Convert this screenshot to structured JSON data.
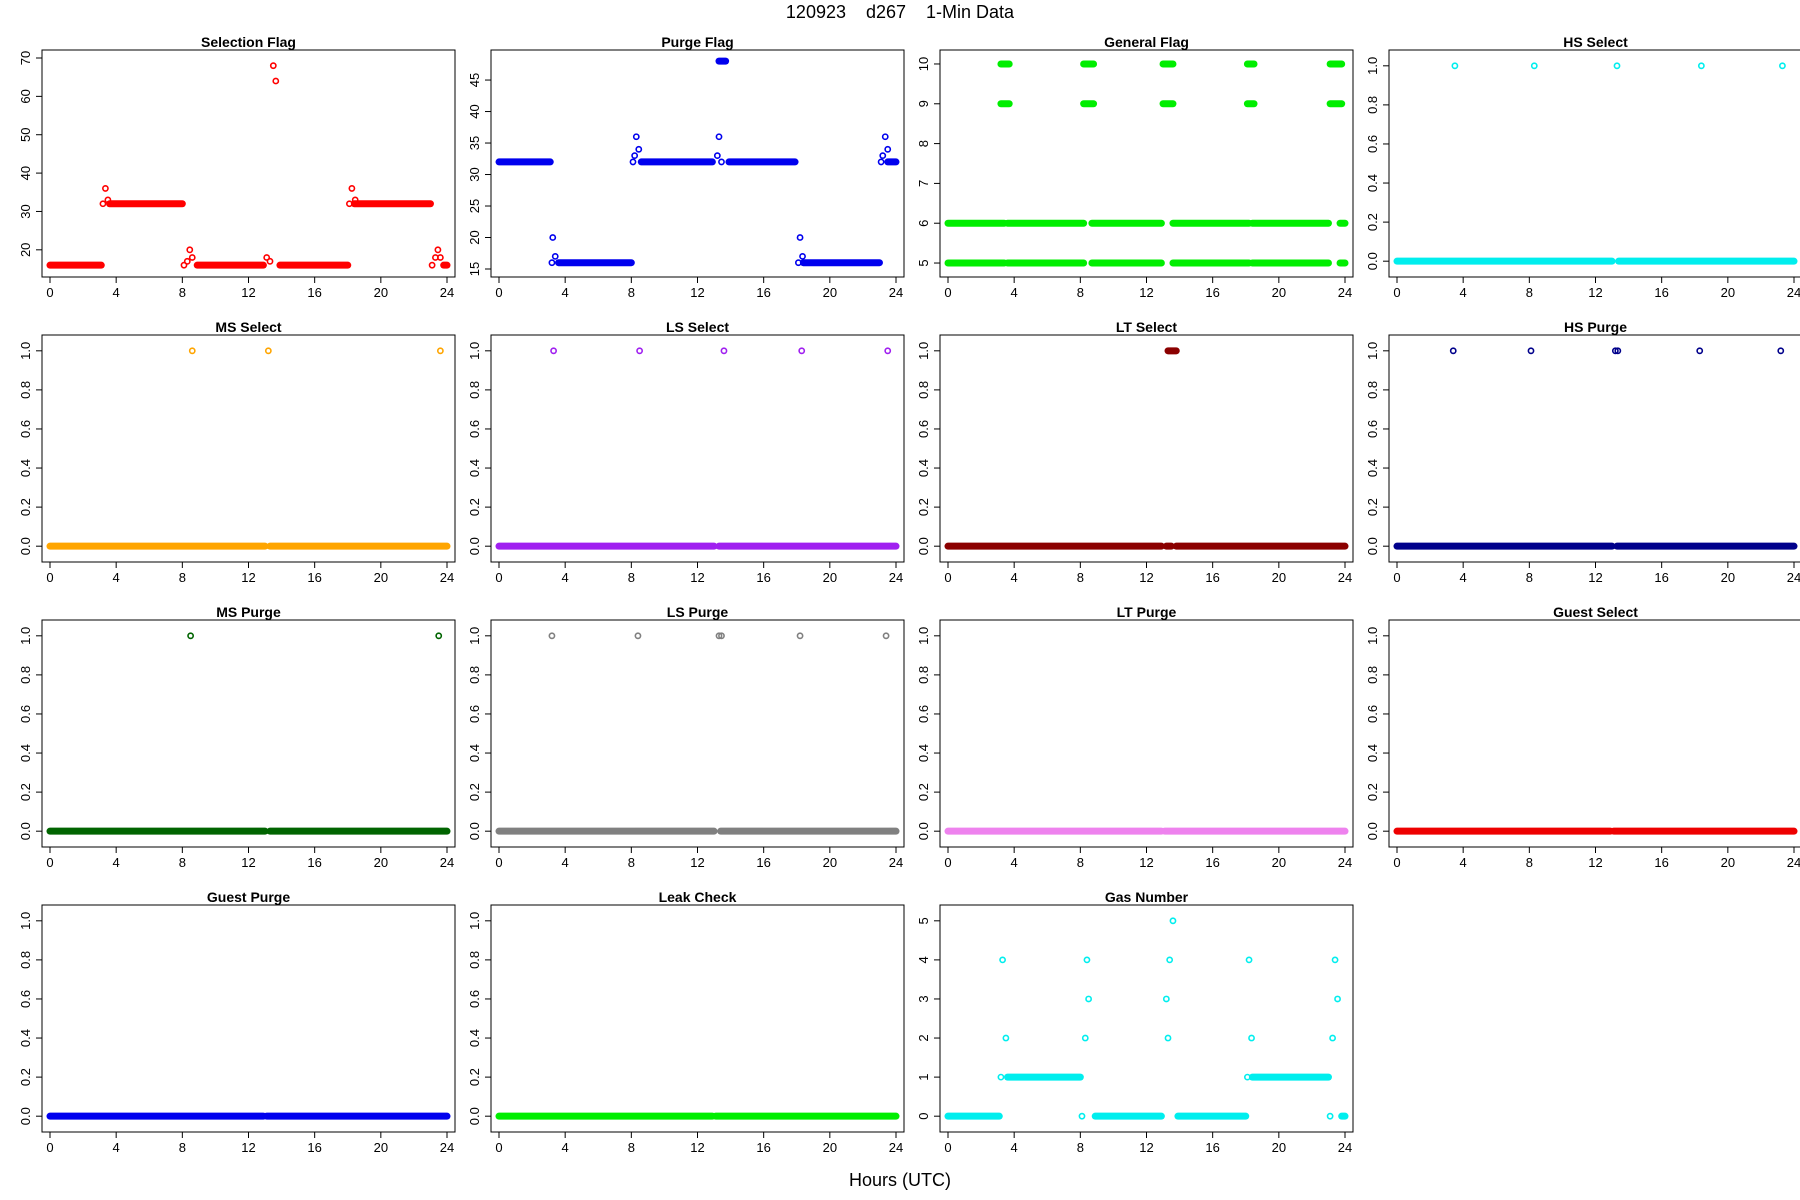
{
  "page": {
    "title": "120923    d267    1-Min Data",
    "xlabel": "Hours (UTC)"
  },
  "chart_data": [
    {
      "type": "scatter",
      "title": "Selection Flag",
      "color": "#ff0000",
      "xlabel": "Hours (UTC)",
      "xlim": [
        0,
        24
      ],
      "xticks": [
        0,
        4,
        8,
        12,
        16,
        20,
        24
      ],
      "ylim": [
        15,
        70
      ],
      "yticks": [
        20,
        30,
        40,
        50,
        60,
        70
      ],
      "segments": [
        {
          "x0": 0,
          "x1": 3.1,
          "y": 16
        },
        {
          "x0": 3.6,
          "x1": 8.0,
          "y": 32
        },
        {
          "x0": 8.9,
          "x1": 12.9,
          "y": 16
        },
        {
          "x0": 13.9,
          "x1": 18.0,
          "y": 16
        },
        {
          "x0": 18.4,
          "x1": 23.0,
          "y": 32
        },
        {
          "x0": 23.8,
          "x1": 24,
          "y": 16
        }
      ],
      "points": [
        [
          3.2,
          32
        ],
        [
          3.35,
          36
        ],
        [
          3.5,
          33
        ],
        [
          8.1,
          16
        ],
        [
          8.3,
          17
        ],
        [
          8.45,
          20
        ],
        [
          8.6,
          18
        ],
        [
          13.1,
          18
        ],
        [
          13.3,
          17
        ],
        [
          13.5,
          68
        ],
        [
          13.65,
          64
        ],
        [
          18.1,
          32
        ],
        [
          18.25,
          36
        ],
        [
          18.45,
          33
        ],
        [
          23.1,
          16
        ],
        [
          23.3,
          18
        ],
        [
          23.45,
          20
        ],
        [
          23.6,
          18
        ]
      ]
    },
    {
      "type": "scatter",
      "title": "Purge Flag",
      "color": "#0000ee",
      "xlabel": "Hours (UTC)",
      "xlim": [
        0,
        24
      ],
      "xticks": [
        0,
        4,
        8,
        12,
        16,
        20,
        24
      ],
      "ylim": [
        15,
        48.5
      ],
      "yticks": [
        15,
        20,
        25,
        30,
        35,
        40,
        45
      ],
      "segments": [
        {
          "x0": 0,
          "x1": 3.1,
          "y": 32
        },
        {
          "x0": 3.6,
          "x1": 8.0,
          "y": 16
        },
        {
          "x0": 8.6,
          "x1": 12.9,
          "y": 32
        },
        {
          "x0": 13.3,
          "x1": 13.7,
          "y": 48
        },
        {
          "x0": 13.9,
          "x1": 17.9,
          "y": 32
        },
        {
          "x0": 18.4,
          "x1": 23.0,
          "y": 16
        },
        {
          "x0": 23.5,
          "x1": 24,
          "y": 32
        }
      ],
      "points": [
        [
          3.2,
          16
        ],
        [
          3.25,
          20
        ],
        [
          3.4,
          17
        ],
        [
          8.1,
          32
        ],
        [
          8.2,
          33
        ],
        [
          8.3,
          36
        ],
        [
          8.45,
          34
        ],
        [
          13.2,
          33
        ],
        [
          13.3,
          36
        ],
        [
          13.45,
          32
        ],
        [
          18.1,
          16
        ],
        [
          18.2,
          20
        ],
        [
          18.35,
          17
        ],
        [
          23.1,
          32
        ],
        [
          23.2,
          33
        ],
        [
          23.35,
          36
        ],
        [
          23.5,
          34
        ]
      ]
    },
    {
      "type": "scatter",
      "title": "General Flag",
      "color": "#00ee00",
      "xlabel": "Hours (UTC)",
      "xlim": [
        0,
        24
      ],
      "xticks": [
        0,
        4,
        8,
        12,
        16,
        20,
        24
      ],
      "ylim": [
        4.85,
        10.15
      ],
      "yticks": [
        5,
        6,
        7,
        8,
        9,
        10
      ],
      "segments": [
        {
          "x0": 0,
          "x1": 3.4,
          "y": 6
        },
        {
          "x0": 3.6,
          "x1": 8.2,
          "y": 6
        },
        {
          "x0": 8.7,
          "x1": 12.9,
          "y": 6
        },
        {
          "x0": 13.6,
          "x1": 18.2,
          "y": 6
        },
        {
          "x0": 18.4,
          "x1": 23.0,
          "y": 6
        },
        {
          "x0": 23.7,
          "x1": 24,
          "y": 6
        },
        {
          "x0": 0,
          "x1": 3.4,
          "y": 5
        },
        {
          "x0": 3.6,
          "x1": 8.2,
          "y": 5
        },
        {
          "x0": 8.7,
          "x1": 12.9,
          "y": 5
        },
        {
          "x0": 13.6,
          "x1": 18.2,
          "y": 5
        },
        {
          "x0": 18.4,
          "x1": 23.0,
          "y": 5
        },
        {
          "x0": 23.7,
          "x1": 24,
          "y": 5
        },
        {
          "x0": 3.2,
          "x1": 3.7,
          "y": 10
        },
        {
          "x0": 8.2,
          "x1": 8.8,
          "y": 10
        },
        {
          "x0": 13.0,
          "x1": 13.6,
          "y": 10
        },
        {
          "x0": 18.1,
          "x1": 18.5,
          "y": 10
        },
        {
          "x0": 23.1,
          "x1": 23.8,
          "y": 10
        },
        {
          "x0": 3.2,
          "x1": 3.7,
          "y": 9
        },
        {
          "x0": 8.2,
          "x1": 8.8,
          "y": 9
        },
        {
          "x0": 13.0,
          "x1": 13.6,
          "y": 9
        },
        {
          "x0": 18.1,
          "x1": 18.5,
          "y": 9
        },
        {
          "x0": 23.1,
          "x1": 23.8,
          "y": 9
        }
      ],
      "points": []
    },
    {
      "type": "scatter",
      "title": "HS Select",
      "color": "#00eeee",
      "xlabel": "Hours (UTC)",
      "xlim": [
        0,
        24
      ],
      "xticks": [
        0,
        4,
        8,
        12,
        16,
        20,
        24
      ],
      "ylim": [
        -0.04,
        1.04
      ],
      "yticks": [
        0.0,
        0.2,
        0.4,
        0.6,
        0.8,
        1.0
      ],
      "segments": [
        {
          "x0": 0,
          "x1": 13.0,
          "y": 0
        },
        {
          "x0": 13.4,
          "x1": 24,
          "y": 0
        }
      ],
      "points": [
        [
          3.5,
          1
        ],
        [
          8.3,
          1
        ],
        [
          13.3,
          1
        ],
        [
          18.4,
          1
        ],
        [
          23.3,
          1
        ]
      ]
    },
    {
      "type": "scatter",
      "title": "MS Select",
      "color": "#ffa500",
      "xlabel": "Hours (UTC)",
      "xlim": [
        0,
        24
      ],
      "xticks": [
        0,
        4,
        8,
        12,
        16,
        20,
        24
      ],
      "ylim": [
        -0.04,
        1.04
      ],
      "yticks": [
        0.0,
        0.2,
        0.4,
        0.6,
        0.8,
        1.0
      ],
      "segments": [
        {
          "x0": 0,
          "x1": 13.0,
          "y": 0
        },
        {
          "x0": 13.3,
          "x1": 24,
          "y": 0
        }
      ],
      "points": [
        [
          8.6,
          1
        ],
        [
          13.2,
          1
        ],
        [
          23.6,
          1
        ]
      ]
    },
    {
      "type": "scatter",
      "title": "LS Select",
      "color": "#a020f0",
      "xlabel": "Hours (UTC)",
      "xlim": [
        0,
        24
      ],
      "xticks": [
        0,
        4,
        8,
        12,
        16,
        20,
        24
      ],
      "ylim": [
        -0.04,
        1.04
      ],
      "yticks": [
        0.0,
        0.2,
        0.4,
        0.6,
        0.8,
        1.0
      ],
      "segments": [
        {
          "x0": 0,
          "x1": 13.0,
          "y": 0
        },
        {
          "x0": 13.3,
          "x1": 24,
          "y": 0
        }
      ],
      "points": [
        [
          3.3,
          1
        ],
        [
          8.5,
          1
        ],
        [
          13.6,
          1
        ],
        [
          18.3,
          1
        ],
        [
          23.5,
          1
        ]
      ]
    },
    {
      "type": "scatter",
      "title": "LT Select",
      "color": "#8b0000",
      "xlabel": "Hours (UTC)",
      "xlim": [
        0,
        24
      ],
      "xticks": [
        0,
        4,
        8,
        12,
        16,
        20,
        24
      ],
      "ylim": [
        -0.04,
        1.04
      ],
      "yticks": [
        0.0,
        0.2,
        0.4,
        0.6,
        0.8,
        1.0
      ],
      "segments": [
        {
          "x0": 0,
          "x1": 12.9,
          "y": 0
        },
        {
          "x0": 13.2,
          "x1": 13.5,
          "y": 0
        },
        {
          "x0": 13.8,
          "x1": 24,
          "y": 0
        },
        {
          "x0": 13.3,
          "x1": 13.8,
          "y": 1
        }
      ],
      "points": []
    },
    {
      "type": "scatter",
      "title": "HS Purge",
      "color": "#00008b",
      "xlabel": "Hours (UTC)",
      "xlim": [
        0,
        24
      ],
      "xticks": [
        0,
        4,
        8,
        12,
        16,
        20,
        24
      ],
      "ylim": [
        -0.04,
        1.04
      ],
      "yticks": [
        0.0,
        0.2,
        0.4,
        0.6,
        0.8,
        1.0
      ],
      "segments": [
        {
          "x0": 0,
          "x1": 13.0,
          "y": 0
        },
        {
          "x0": 13.3,
          "x1": 24,
          "y": 0
        }
      ],
      "points": [
        [
          3.4,
          1
        ],
        [
          8.1,
          1
        ],
        [
          13.2,
          1
        ],
        [
          13.35,
          1
        ],
        [
          18.3,
          1
        ],
        [
          23.2,
          1
        ]
      ]
    },
    {
      "type": "scatter",
      "title": "MS Purge",
      "color": "#006400",
      "xlabel": "Hours (UTC)",
      "xlim": [
        0,
        24
      ],
      "xticks": [
        0,
        4,
        8,
        12,
        16,
        20,
        24
      ],
      "ylim": [
        -0.04,
        1.04
      ],
      "yticks": [
        0.0,
        0.2,
        0.4,
        0.6,
        0.8,
        1.0
      ],
      "segments": [
        {
          "x0": 0,
          "x1": 13.0,
          "y": 0
        },
        {
          "x0": 13.3,
          "x1": 24,
          "y": 0
        }
      ],
      "points": [
        [
          8.5,
          1
        ],
        [
          23.5,
          1
        ]
      ]
    },
    {
      "type": "scatter",
      "title": "LS Purge",
      "color": "#808080",
      "xlabel": "Hours (UTC)",
      "xlim": [
        0,
        24
      ],
      "xticks": [
        0,
        4,
        8,
        12,
        16,
        20,
        24
      ],
      "ylim": [
        -0.04,
        1.04
      ],
      "yticks": [
        0.0,
        0.2,
        0.4,
        0.6,
        0.8,
        1.0
      ],
      "segments": [
        {
          "x0": 0,
          "x1": 13.0,
          "y": 0
        },
        {
          "x0": 13.4,
          "x1": 24,
          "y": 0
        }
      ],
      "points": [
        [
          3.2,
          1
        ],
        [
          8.4,
          1
        ],
        [
          13.3,
          1
        ],
        [
          13.45,
          1
        ],
        [
          18.2,
          1
        ],
        [
          23.4,
          1
        ]
      ]
    },
    {
      "type": "scatter",
      "title": "LT Purge",
      "color": "#ee82ee",
      "xlabel": "Hours (UTC)",
      "xlim": [
        0,
        24
      ],
      "xticks": [
        0,
        4,
        8,
        12,
        16,
        20,
        24
      ],
      "ylim": [
        -0.04,
        1.04
      ],
      "yticks": [
        0.0,
        0.2,
        0.4,
        0.6,
        0.8,
        1.0
      ],
      "segments": [
        {
          "x0": 0,
          "x1": 12.9,
          "y": 0
        },
        {
          "x0": 13.1,
          "x1": 24,
          "y": 0
        }
      ],
      "points": []
    },
    {
      "type": "scatter",
      "title": "Guest Select",
      "color": "#ee0000",
      "xlabel": "Hours (UTC)",
      "xlim": [
        0,
        24
      ],
      "xticks": [
        0,
        4,
        8,
        12,
        16,
        20,
        24
      ],
      "ylim": [
        -0.04,
        1.04
      ],
      "yticks": [
        0.0,
        0.2,
        0.4,
        0.6,
        0.8,
        1.0
      ],
      "segments": [
        {
          "x0": 0,
          "x1": 12.9,
          "y": 0
        },
        {
          "x0": 13.1,
          "x1": 24,
          "y": 0
        }
      ],
      "points": []
    },
    {
      "type": "scatter",
      "title": "Guest Purge",
      "color": "#0000ee",
      "xlabel": "Hours (UTC)",
      "xlim": [
        0,
        24
      ],
      "xticks": [
        0,
        4,
        8,
        12,
        16,
        20,
        24
      ],
      "ylim": [
        -0.04,
        1.04
      ],
      "yticks": [
        0.0,
        0.2,
        0.4,
        0.6,
        0.8,
        1.0
      ],
      "segments": [
        {
          "x0": 0,
          "x1": 12.9,
          "y": 0
        },
        {
          "x0": 13.1,
          "x1": 24,
          "y": 0
        }
      ],
      "points": []
    },
    {
      "type": "scatter",
      "title": "Leak Check",
      "color": "#00ee00",
      "xlabel": "Hours (UTC)",
      "xlim": [
        0,
        24
      ],
      "xticks": [
        0,
        4,
        8,
        12,
        16,
        20,
        24
      ],
      "ylim": [
        -0.04,
        1.04
      ],
      "yticks": [
        0.0,
        0.2,
        0.4,
        0.6,
        0.8,
        1.0
      ],
      "segments": [
        {
          "x0": 0,
          "x1": 12.9,
          "y": 0
        },
        {
          "x0": 13.1,
          "x1": 24,
          "y": 0
        }
      ],
      "points": []
    },
    {
      "type": "scatter",
      "title": "Gas Number",
      "color": "#00eeee",
      "xlabel": "Hours (UTC)",
      "xlim": [
        0,
        24
      ],
      "xticks": [
        0,
        4,
        8,
        12,
        16,
        20,
        24
      ],
      "ylim": [
        -0.2,
        5.2
      ],
      "yticks": [
        0,
        1,
        2,
        3,
        4,
        5
      ],
      "segments": [
        {
          "x0": 0,
          "x1": 3.1,
          "y": 0
        },
        {
          "x0": 3.6,
          "x1": 8.0,
          "y": 1
        },
        {
          "x0": 8.9,
          "x1": 12.9,
          "y": 0
        },
        {
          "x0": 13.9,
          "x1": 18.0,
          "y": 0
        },
        {
          "x0": 18.4,
          "x1": 23.0,
          "y": 1
        },
        {
          "x0": 23.8,
          "x1": 24,
          "y": 0
        }
      ],
      "points": [
        [
          3.2,
          1
        ],
        [
          3.3,
          4
        ],
        [
          3.5,
          2
        ],
        [
          8.1,
          0
        ],
        [
          8.3,
          2
        ],
        [
          8.4,
          4
        ],
        [
          8.5,
          3
        ],
        [
          13.2,
          3
        ],
        [
          13.3,
          2
        ],
        [
          13.4,
          4
        ],
        [
          13.6,
          5
        ],
        [
          18.1,
          1
        ],
        [
          18.2,
          4
        ],
        [
          18.35,
          2
        ],
        [
          23.1,
          0
        ],
        [
          23.25,
          2
        ],
        [
          23.4,
          4
        ],
        [
          23.55,
          3
        ]
      ]
    }
  ]
}
